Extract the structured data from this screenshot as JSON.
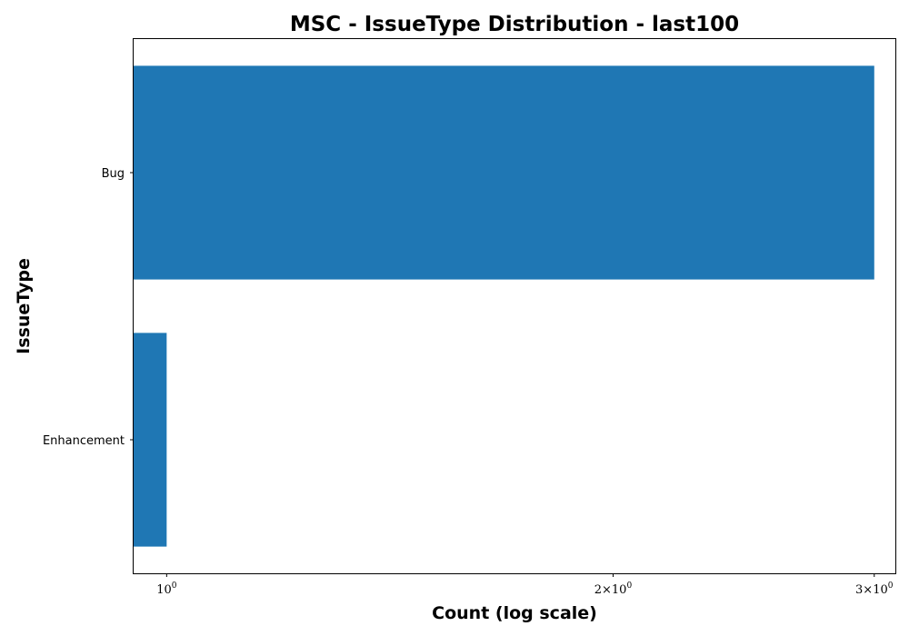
{
  "chart_data": {
    "type": "bar",
    "orientation": "horizontal",
    "title": "MSC - IssueType Distribution - last100",
    "xlabel": "Count (log scale)",
    "ylabel": "IssueType",
    "x_scale": "log",
    "xlim": [
      0.95,
      3.1
    ],
    "categories": [
      "Bug",
      "Enhancement"
    ],
    "values": [
      3,
      1
    ],
    "x_ticks": [
      {
        "value": 1,
        "base": "10",
        "exponent": "0",
        "prefix": ""
      },
      {
        "value": 2,
        "base": "10",
        "exponent": "0",
        "prefix": "2×"
      },
      {
        "value": 3,
        "base": "10",
        "exponent": "0",
        "prefix": "3×"
      }
    ],
    "bar_color": "#1f77b4",
    "grid": false,
    "legend": "none"
  }
}
